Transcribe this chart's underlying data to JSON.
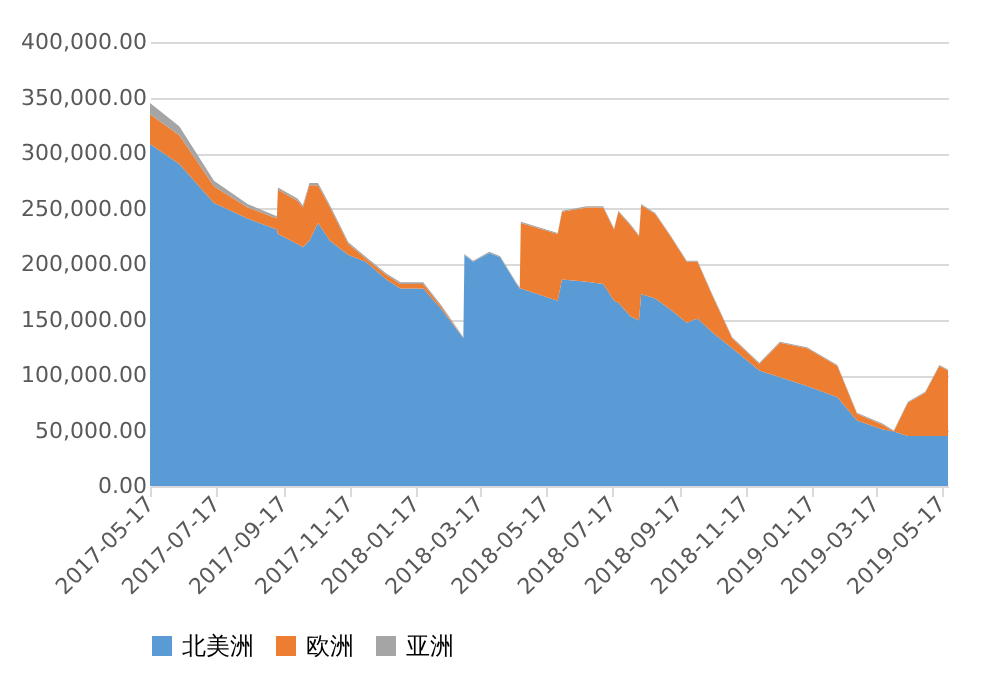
{
  "chart_data": {
    "type": "area",
    "stacked": true,
    "legend": "bottom",
    "grid": "y",
    "x": [
      "2017-05-17",
      "2017-06-13",
      "2017-07-15",
      "2017-08-15",
      "2017-09-11",
      "2017-09-12",
      "2017-09-30",
      "2017-10-05",
      "2017-10-11",
      "2017-10-19",
      "2017-10-30",
      "2017-11-16",
      "2017-12-02",
      "2017-12-21",
      "2018-01-03",
      "2018-01-24",
      "2018-02-10",
      "2018-03-02",
      "2018-03-03",
      "2018-03-11",
      "2018-03-26",
      "2018-04-05",
      "2018-04-20",
      "2018-04-23",
      "2018-04-24",
      "2018-05-28",
      "2018-06-01",
      "2018-06-24",
      "2018-07-09",
      "2018-07-19",
      "2018-07-23",
      "2018-08-03",
      "2018-08-11",
      "2018-08-13",
      "2018-08-26",
      "2018-09-09",
      "2018-09-24",
      "2018-10-04",
      "2018-10-17",
      "2018-11-05",
      "2018-11-30",
      "2018-12-19",
      "2019-01-13",
      "2019-02-10",
      "2019-02-28",
      "2019-03-24",
      "2019-04-03",
      "2019-04-16",
      "2019-05-02",
      "2019-05-15",
      "2019-05-23"
    ],
    "xlim": [
      "2017-05-17",
      "2019-05-23"
    ],
    "xticks": [
      {
        "value": "2017-05-17",
        "label": "2017-05-17"
      },
      {
        "value": "2017-07-17",
        "label": "2017-07-17"
      },
      {
        "value": "2017-09-17",
        "label": "2017-09-17"
      },
      {
        "value": "2017-11-17",
        "label": "2017-11-17"
      },
      {
        "value": "2018-01-17",
        "label": "2018-01-17"
      },
      {
        "value": "2018-03-17",
        "label": "2018-03-17"
      },
      {
        "value": "2018-05-17",
        "label": "2018-05-17"
      },
      {
        "value": "2018-07-17",
        "label": "2018-07-17"
      },
      {
        "value": "2018-09-17",
        "label": "2018-09-17"
      },
      {
        "value": "2018-11-17",
        "label": "2018-11-17"
      },
      {
        "value": "2019-01-17",
        "label": "2019-01-17"
      },
      {
        "value": "2019-03-17",
        "label": "2019-03-17"
      },
      {
        "value": "2019-05-17",
        "label": "2019-05-17"
      }
    ],
    "ylim": [
      0,
      400000
    ],
    "yticks": [
      {
        "value": 0,
        "label": "0.00"
      },
      {
        "value": 50000,
        "label": "50,000.00"
      },
      {
        "value": 100000,
        "label": "100,000.00"
      },
      {
        "value": 150000,
        "label": "150,000.00"
      },
      {
        "value": 200000,
        "label": "200,000.00"
      },
      {
        "value": 250000,
        "label": "250,000.00"
      },
      {
        "value": 300000,
        "label": "300,000.00"
      },
      {
        "value": 350000,
        "label": "350,000.00"
      },
      {
        "value": 400000,
        "label": "400,000.00"
      }
    ],
    "series": [
      {
        "name": "北美洲",
        "color": "#5b9bd5",
        "values": [
          308000,
          290000,
          255000,
          241000,
          231000,
          227000,
          218000,
          215000,
          221000,
          237000,
          221000,
          208000,
          202000,
          186000,
          178000,
          178000,
          159000,
          133000,
          208000,
          202000,
          210000,
          206000,
          182000,
          178000,
          178000,
          167000,
          186000,
          184000,
          182000,
          167000,
          165000,
          153000,
          149000,
          173000,
          169000,
          159000,
          147000,
          151000,
          139000,
          124000,
          104000,
          98000,
          90000,
          80000,
          59000,
          51000,
          49000,
          45000,
          45000,
          45000,
          45000
        ]
      },
      {
        "name": "欧洲",
        "color": "#ed7d31",
        "values": [
          27000,
          26000,
          15000,
          10000,
          10000,
          40000,
          39000,
          36000,
          50000,
          34000,
          30000,
          10000,
          3000,
          4000,
          4000,
          4000,
          2000,
          0,
          0,
          0,
          0,
          0,
          0,
          0,
          59000,
          60000,
          61000,
          67000,
          69000,
          64000,
          82000,
          82000,
          76000,
          80000,
          76000,
          66000,
          55000,
          51000,
          34000,
          9000,
          6000,
          31000,
          34000,
          28000,
          6000,
          4000,
          0,
          30000,
          39000,
          63000,
          59000
        ]
      },
      {
        "name": "亚洲",
        "color": "#a5a5a5",
        "values": [
          10000,
          8000,
          5000,
          3000,
          2000,
          2000,
          2000,
          2000,
          2000,
          2000,
          2000,
          1500,
          1500,
          1500,
          1500,
          1500,
          1500,
          1000,
          1000,
          1000,
          1000,
          1000,
          1000,
          1000,
          1000,
          1000,
          1000,
          1000,
          1000,
          1000,
          1000,
          1000,
          1000,
          1000,
          1000,
          1000,
          1000,
          1000,
          1000,
          1000,
          1000,
          1000,
          1000,
          1000,
          1000,
          1000,
          1000,
          1000,
          1000,
          1000,
          1000
        ]
      }
    ]
  }
}
